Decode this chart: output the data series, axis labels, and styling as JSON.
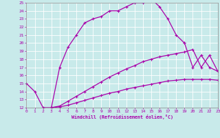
{
  "xlabel": "Windchill (Refroidissement éolien,°C)",
  "background_color": "#c8eaea",
  "grid_color": "#ffffff",
  "line_color": "#aa00aa",
  "xmin": 0,
  "xmax": 23,
  "ymin": 12,
  "ymax": 25,
  "curve1_x": [
    0,
    1,
    2,
    3,
    4,
    5,
    6,
    7,
    8,
    9,
    10,
    11,
    12,
    13,
    14,
    15,
    16,
    17,
    18,
    19
  ],
  "curve1_y": [
    15,
    14,
    12,
    12,
    17,
    19.5,
    21,
    22.5,
    23,
    23.3,
    24,
    24,
    24.5,
    25,
    25,
    25.5,
    24.5,
    23,
    21,
    20
  ],
  "curve2_x": [
    19,
    20,
    21,
    22,
    23
  ],
  "curve2_y": [
    20,
    17,
    18.5,
    17,
    16.5
  ],
  "curve3_x": [
    3,
    4,
    5,
    6,
    7,
    8,
    9,
    10,
    11,
    12,
    13,
    14,
    15,
    16,
    17,
    18,
    19,
    20,
    21,
    22,
    23
  ],
  "curve3_y": [
    12,
    12.2,
    12.8,
    13.4,
    14.0,
    14.6,
    15.2,
    15.8,
    16.3,
    16.8,
    17.2,
    17.7,
    18.0,
    18.3,
    18.5,
    18.7,
    18.9,
    19.2,
    17.0,
    18.5,
    16.5
  ],
  "curve4_x": [
    3,
    4,
    5,
    6,
    7,
    8,
    9,
    10,
    11,
    12,
    13,
    14,
    15,
    16,
    17,
    18,
    19,
    20,
    21,
    22,
    23
  ],
  "curve4_y": [
    12,
    12.1,
    12.3,
    12.6,
    12.9,
    13.2,
    13.5,
    13.8,
    14.0,
    14.3,
    14.5,
    14.7,
    14.9,
    15.1,
    15.3,
    15.4,
    15.5,
    15.5,
    15.5,
    15.5,
    15.4
  ]
}
